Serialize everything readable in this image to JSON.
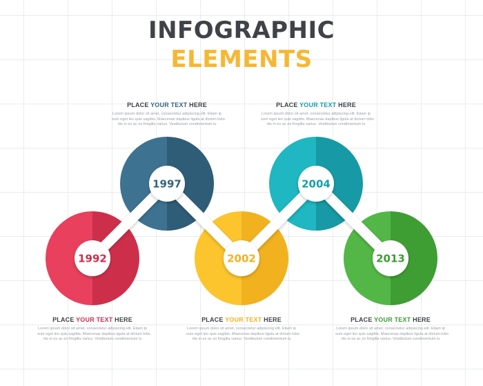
{
  "title": {
    "line1": "INFOGRAPHIC",
    "line2": "ELEMENTS"
  },
  "heading_prefix": "PLACE ",
  "heading_suffix": " HERE",
  "body_lines": [
    "Lorem ipsum dolor sit amet, consectetur adipiscing elit. Etiam ip",
    "sum eget leo quis sagittis. Maecenas dapibus ligula at dictum lobo",
    "rtis in ex ac ex fringilla varius. Vestibulum condimentum lu"
  ],
  "steps": [
    {
      "year": "1992",
      "highlight": "YOUR TEXT",
      "colors": {
        "light": "#e8405d",
        "dark": "#cd2f4b",
        "accent": "#cc2f4b"
      }
    },
    {
      "year": "1997",
      "highlight": "YOUR TEXT",
      "colors": {
        "light": "#3d7391",
        "dark": "#2f5d77",
        "accent": "#36637f"
      }
    },
    {
      "year": "2002",
      "highlight": "YOUR TEXT",
      "colors": {
        "light": "#fcc52d",
        "dark": "#f2b21f",
        "accent": "#f2b21f"
      }
    },
    {
      "year": "2004",
      "highlight": "YOUR TEXT",
      "colors": {
        "light": "#1fb7c1",
        "dark": "#179aa5",
        "accent": "#149fab"
      }
    },
    {
      "year": "2013",
      "highlight": "YOUR TEXT",
      "colors": {
        "light": "#53b747",
        "dark": "#3e9e33",
        "accent": "#3d9c33"
      }
    }
  ]
}
